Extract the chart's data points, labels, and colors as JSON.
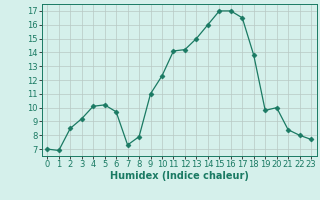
{
  "x": [
    0,
    1,
    2,
    3,
    4,
    5,
    6,
    7,
    8,
    9,
    10,
    11,
    12,
    13,
    14,
    15,
    16,
    17,
    18,
    19,
    20,
    21,
    22,
    23
  ],
  "y": [
    7.0,
    6.9,
    8.5,
    9.2,
    10.1,
    10.2,
    9.7,
    7.3,
    7.9,
    11.0,
    12.3,
    14.1,
    14.2,
    15.0,
    16.0,
    17.0,
    17.0,
    16.5,
    13.8,
    9.8,
    10.0,
    8.4,
    8.0,
    7.7
  ],
  "line_color": "#1a7a63",
  "marker": "D",
  "markersize": 2.5,
  "bg_color": "#d5f0eb",
  "grid_color": "#b8c8c4",
  "xlabel": "Humidex (Indice chaleur)",
  "xlim": [
    -0.5,
    23.5
  ],
  "ylim": [
    6.5,
    17.5
  ],
  "yticks": [
    7,
    8,
    9,
    10,
    11,
    12,
    13,
    14,
    15,
    16,
    17
  ],
  "xticks": [
    0,
    1,
    2,
    3,
    4,
    5,
    6,
    7,
    8,
    9,
    10,
    11,
    12,
    13,
    14,
    15,
    16,
    17,
    18,
    19,
    20,
    21,
    22,
    23
  ],
  "fontsize_label": 7,
  "fontsize_tick": 6
}
